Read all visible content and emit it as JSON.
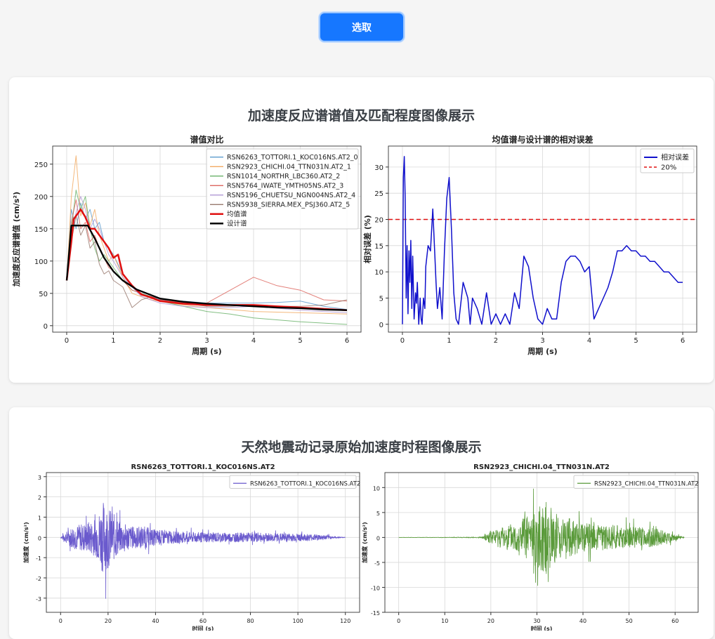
{
  "top_button": {
    "label": "选取"
  },
  "section1": {
    "title": "加速度反应谱谱值及匹配程度图像展示",
    "chart_left": {
      "title": "谱值对比",
      "xlabel": "周期 (s)",
      "ylabel": "加速度反应谱谱值 (cm/s²)",
      "xticks": [
        "0",
        "1",
        "2",
        "3",
        "4",
        "5",
        "6"
      ],
      "yticks": [
        "0",
        "50",
        "100",
        "150",
        "200",
        "250"
      ],
      "legend": [
        "RSN6263_TOTTORI.1_KOC016NS.AT2_0",
        "RSN2923_CHICHI.04_TTN031N.AT2_1",
        "RSN1014_NORTHR_LBC360.AT2_2",
        "RSN5764_IWATE_YMTH05NS.AT2_3",
        "RSN5196_CHUETSU_NGN004NS.AT2_4",
        "RSN5938_SIERRA.MEX_PSJ360.AT2_5",
        "均值谱",
        "设计谱"
      ]
    },
    "chart_right": {
      "title": "均值谱与设计谱的相对误差",
      "xlabel": "周期 (s)",
      "ylabel": "相对误差 (%)",
      "xticks": [
        "0",
        "1",
        "2",
        "3",
        "4",
        "5",
        "6"
      ],
      "yticks": [
        "0",
        "5",
        "10",
        "15",
        "20",
        "25",
        "30"
      ],
      "legend": [
        "相对误差",
        "20%"
      ]
    }
  },
  "section2": {
    "title": "天然地震动记录原始加速度时程图像展示",
    "chart_left": {
      "title": "RSN6263_TOTTORI.1_KOC016NS.AT2",
      "xlabel": "时间 (s)",
      "ylabel": "加速度 (cm/s²)",
      "xticks": [
        "0",
        "20",
        "40",
        "60",
        "80",
        "100",
        "120"
      ],
      "yticks": [
        "-3",
        "-2",
        "-1",
        "0",
        "1",
        "2",
        "3"
      ],
      "legend": [
        "RSN6263_TOTTORI.1_KOC016NS.AT2"
      ]
    },
    "chart_right": {
      "title": "RSN2923_CHICHI.04_TTN031N.AT2",
      "xlabel": "时间 (s)",
      "ylabel": "加速度 (cm/s²)",
      "xticks": [
        "0",
        "10",
        "20",
        "30",
        "40",
        "50",
        "60"
      ],
      "yticks": [
        "-15",
        "-10",
        "-5",
        "0",
        "5",
        "10"
      ],
      "legend": [
        "RSN2923_CHICHI.04_TTN031N.AT2"
      ]
    }
  },
  "colors": {
    "button": "#1677ff",
    "series": [
      "#4a90c8",
      "#f0a050",
      "#5aaa5a",
      "#d9554e",
      "#a88ed0",
      "#8c6a5e"
    ],
    "mean": "#e01010",
    "design": "#000000",
    "error": "#1010cc",
    "threshold": "#e01010",
    "history1": "#6a5acd",
    "history2": "#5a9a3a"
  },
  "chart_data": [
    {
      "type": "line",
      "title": "谱值对比",
      "xlabel": "周期 (s)",
      "ylabel": "加速度反应谱谱值 (cm/s²)",
      "xlim": [
        -0.3,
        6.3
      ],
      "ylim": [
        -10,
        278
      ],
      "grid": true,
      "legend_position": "top-right",
      "series": [
        {
          "name": "RSN6263_TOTTORI.1_KOC016NS.AT2_0",
          "x": [
            0,
            0.1,
            0.2,
            0.3,
            0.4,
            0.5,
            0.6,
            0.7,
            0.8,
            0.9,
            1.0,
            1.2,
            1.4,
            1.6,
            1.8,
            2.0,
            2.5,
            3.0,
            3.5,
            4.0,
            4.5,
            5.0,
            5.5,
            6.0
          ],
          "y": [
            70,
            180,
            150,
            190,
            165,
            180,
            150,
            160,
            130,
            120,
            110,
            80,
            60,
            50,
            45,
            40,
            38,
            35,
            35,
            35,
            36,
            38,
            30,
            25
          ]
        },
        {
          "name": "RSN2923_CHICHI.04_TTN031N.AT2_1",
          "x": [
            0,
            0.1,
            0.2,
            0.3,
            0.4,
            0.5,
            0.6,
            0.7,
            0.8,
            0.9,
            1.0,
            1.2,
            1.4,
            1.6,
            1.8,
            2.0,
            2.5,
            3.0,
            3.5,
            4.0,
            4.5,
            5.0,
            5.5,
            6.0
          ],
          "y": [
            70,
            200,
            263,
            170,
            190,
            155,
            180,
            140,
            120,
            100,
            110,
            75,
            50,
            45,
            40,
            38,
            32,
            28,
            25,
            22,
            21,
            20,
            19,
            18
          ]
        },
        {
          "name": "RSN1014_NORTHR_LBC360.AT2_2",
          "x": [
            0,
            0.1,
            0.2,
            0.3,
            0.4,
            0.5,
            0.6,
            0.7,
            0.8,
            0.9,
            1.0,
            1.2,
            1.4,
            1.6,
            1.8,
            2.0,
            2.5,
            3.0,
            3.5,
            4.0,
            4.5,
            5.0,
            5.5,
            6.0
          ],
          "y": [
            70,
            150,
            210,
            180,
            200,
            150,
            120,
            100,
            110,
            100,
            90,
            70,
            55,
            50,
            45,
            38,
            30,
            22,
            18,
            12,
            9,
            6,
            4,
            2
          ]
        },
        {
          "name": "RSN5764_IWATE_YMTH05NS.AT2_3",
          "x": [
            0,
            0.1,
            0.2,
            0.3,
            0.4,
            0.5,
            0.6,
            0.7,
            0.8,
            0.9,
            1.0,
            1.2,
            1.4,
            1.6,
            1.8,
            2.0,
            2.5,
            3.0,
            3.5,
            4.0,
            4.5,
            5.0,
            5.5,
            6.0
          ],
          "y": [
            70,
            160,
            195,
            150,
            160,
            130,
            140,
            120,
            105,
            90,
            85,
            70,
            55,
            50,
            42,
            40,
            35,
            35,
            55,
            75,
            62,
            55,
            40,
            38
          ]
        },
        {
          "name": "RSN5196_CHUETSU_NGN004NS.AT2_4",
          "x": [
            0,
            0.1,
            0.2,
            0.3,
            0.4,
            0.5,
            0.6,
            0.7,
            0.8,
            0.9,
            1.0,
            1.2,
            1.4,
            1.6,
            1.8,
            2.0,
            2.5,
            3.0,
            3.5,
            4.0,
            4.5,
            5.0,
            5.5,
            6.0
          ],
          "y": [
            70,
            140,
            175,
            200,
            180,
            150,
            165,
            150,
            130,
            110,
            100,
            75,
            60,
            45,
            40,
            35,
            30,
            28,
            28,
            30,
            27,
            24,
            22,
            20
          ]
        },
        {
          "name": "RSN5938_SIERRA.MEX_PSJ360.AT2_5",
          "x": [
            0,
            0.1,
            0.2,
            0.3,
            0.4,
            0.5,
            0.6,
            0.7,
            0.8,
            0.9,
            1.0,
            1.2,
            1.4,
            1.6,
            1.8,
            2.0,
            2.5,
            3.0,
            3.5,
            4.0,
            4.5,
            5.0,
            5.5,
            6.0
          ],
          "y": [
            70,
            130,
            170,
            140,
            155,
            120,
            130,
            95,
            80,
            85,
            70,
            60,
            28,
            40,
            45,
            42,
            35,
            30,
            30,
            32,
            30,
            30,
            32,
            40
          ]
        },
        {
          "name": "均值谱",
          "x": [
            0,
            0.1,
            0.15,
            0.2,
            0.3,
            0.4,
            0.5,
            0.6,
            0.7,
            0.8,
            0.9,
            1.0,
            1.1,
            1.2,
            1.4,
            1.6,
            1.8,
            2.0,
            2.5,
            3.0,
            3.5,
            4.0,
            4.5,
            5.0,
            5.5,
            6.0
          ],
          "y": [
            70,
            130,
            165,
            170,
            180,
            168,
            150,
            150,
            140,
            130,
            120,
            105,
            110,
            80,
            62,
            48,
            44,
            38,
            34,
            32,
            32,
            32,
            30,
            28,
            26,
            24
          ]
        },
        {
          "name": "设计谱",
          "x": [
            0,
            0.1,
            0.45,
            0.6,
            0.8,
            1.0,
            1.2,
            1.5,
            2.0,
            2.5,
            3.0,
            3.5,
            4.0,
            4.5,
            5.0,
            5.5,
            6.0
          ],
          "y": [
            70,
            155,
            155,
            135,
            105,
            84,
            70,
            56,
            42,
            37,
            34,
            32,
            30,
            28,
            27,
            25,
            24
          ]
        }
      ]
    },
    {
      "type": "line",
      "title": "均值谱与设计谱的相对误差",
      "xlabel": "周期 (s)",
      "ylabel": "相对误差 (%)",
      "xlim": [
        -0.3,
        6.3
      ],
      "ylim": [
        -1.5,
        34
      ],
      "grid": true,
      "legend_position": "top-right",
      "series": [
        {
          "name": "相对误差",
          "x": [
            0,
            0.02,
            0.04,
            0.06,
            0.08,
            0.1,
            0.12,
            0.14,
            0.16,
            0.18,
            0.2,
            0.22,
            0.25,
            0.28,
            0.3,
            0.32,
            0.35,
            0.38,
            0.4,
            0.42,
            0.45,
            0.48,
            0.5,
            0.55,
            0.6,
            0.65,
            0.7,
            0.72,
            0.75,
            0.8,
            0.85,
            0.9,
            0.95,
            1.0,
            1.05,
            1.1,
            1.15,
            1.2,
            1.3,
            1.4,
            1.45,
            1.5,
            1.6,
            1.7,
            1.8,
            1.9,
            2.0,
            2.1,
            2.2,
            2.3,
            2.4,
            2.5,
            2.6,
            2.7,
            2.8,
            2.9,
            3.0,
            3.1,
            3.2,
            3.3,
            3.4,
            3.5,
            3.6,
            3.7,
            3.8,
            3.9,
            4.0,
            4.1,
            4.2,
            4.3,
            4.4,
            4.5,
            4.6,
            4.7,
            4.8,
            4.9,
            5.0,
            5.1,
            5.2,
            5.3,
            5.4,
            5.5,
            5.6,
            5.7,
            5.8,
            5.9,
            6.0
          ],
          "y": [
            0,
            28,
            32,
            24,
            5,
            15,
            2,
            14,
            8,
            16,
            3,
            13,
            1,
            6,
            4,
            8,
            0,
            5,
            1,
            0,
            5,
            3,
            11,
            15,
            14,
            22,
            12,
            8,
            3,
            7,
            1,
            14,
            24,
            28,
            18,
            6,
            1,
            0,
            8,
            5,
            0,
            5,
            3,
            0,
            6,
            0,
            2,
            0,
            2,
            0,
            6,
            3,
            13,
            11,
            5,
            1,
            0,
            3,
            1,
            1,
            8,
            12,
            13,
            13,
            12,
            10,
            11,
            1,
            3,
            5,
            7,
            10,
            14,
            14,
            15,
            14,
            14,
            13,
            13,
            12,
            12,
            11,
            10,
            10,
            9,
            8,
            8
          ]
        },
        {
          "name": "20%",
          "x": [
            -0.3,
            6.3
          ],
          "y": [
            20,
            20
          ]
        }
      ]
    },
    {
      "type": "line",
      "title": "RSN6263_TOTTORI.1_KOC016NS.AT2",
      "xlabel": "时间 (s)",
      "ylabel": "加速度 (cm/s²)",
      "xlim": [
        -6,
        126
      ],
      "ylim": [
        -3.7,
        3.2
      ],
      "grid": true,
      "legend_position": "top-right",
      "envelope": {
        "t": [
          0,
          5,
          10,
          15,
          18,
          20,
          25,
          30,
          35,
          40,
          50,
          60,
          80,
          100,
          110,
          115,
          120
        ],
        "amp": [
          0.05,
          1.0,
          1.3,
          1.7,
          3.3,
          2.8,
          1.4,
          1.0,
          1.0,
          0.7,
          0.5,
          0.45,
          0.4,
          0.35,
          0.25,
          0.1,
          0.02
        ]
      }
    },
    {
      "type": "line",
      "title": "RSN2923_CHICHI.04_TTN031N.AT2",
      "xlabel": "时间 (s)",
      "ylabel": "加速度 (cm/s²)",
      "xlim": [
        -3,
        65
      ],
      "ylim": [
        -15,
        13
      ],
      "grid": true,
      "legend_position": "top-right",
      "envelope": {
        "t": [
          0,
          10,
          18,
          20,
          25,
          28,
          30,
          32,
          35,
          40,
          45,
          50,
          55,
          58,
          60,
          62
        ],
        "amp": [
          0.05,
          0.08,
          0.2,
          2.5,
          5.5,
          8.0,
          11.0,
          13.0,
          8.0,
          5.5,
          4.5,
          4.0,
          3.5,
          2.5,
          1.0,
          0.2
        ]
      }
    }
  ]
}
